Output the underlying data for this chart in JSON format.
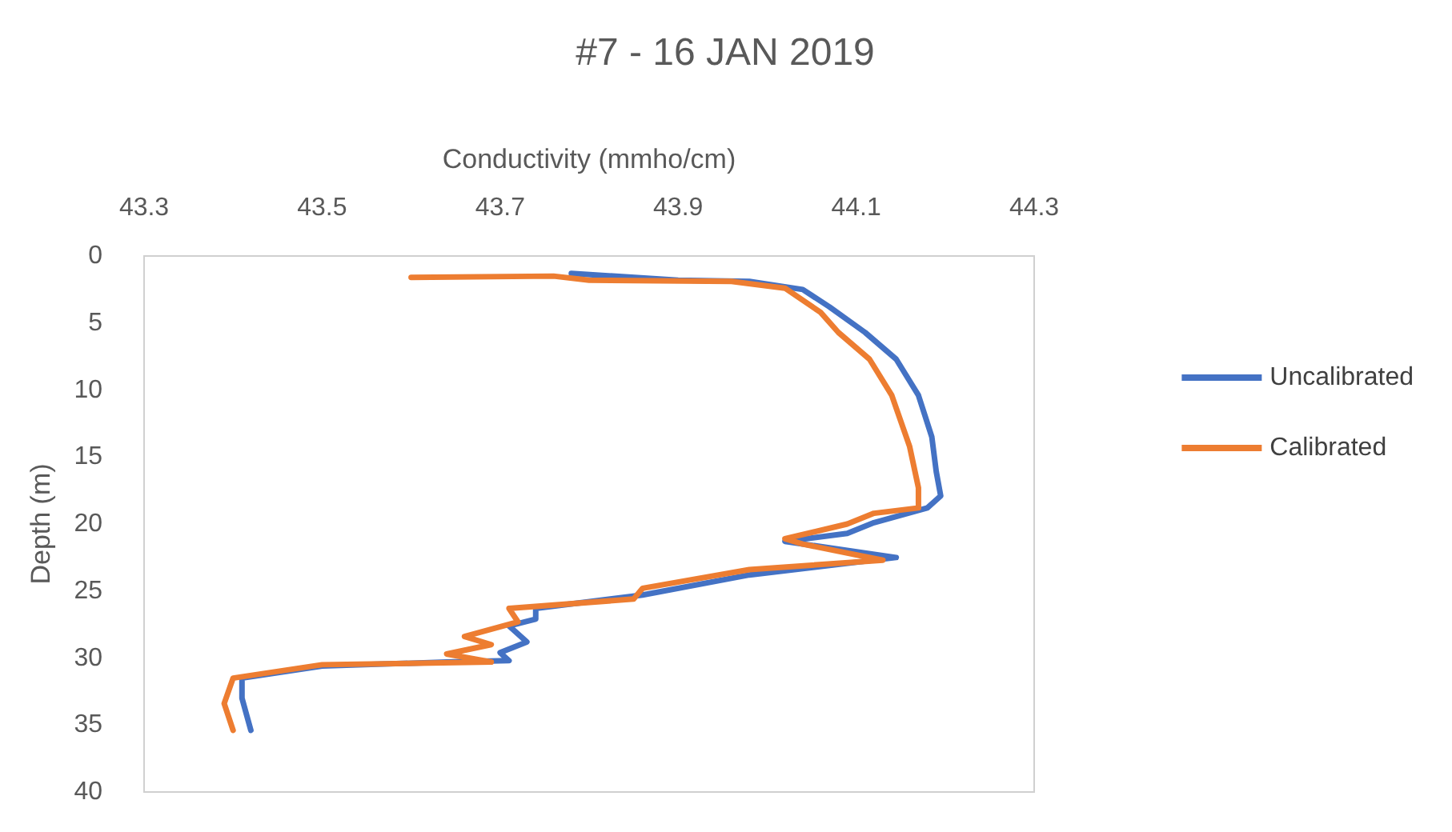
{
  "chart_data": {
    "type": "line",
    "title": "#7 - 16 JAN 2019",
    "xlabel": "Conductivity (mmho/cm)",
    "ylabel": "Depth (m)",
    "xlim": [
      43.3,
      44.3
    ],
    "xticks": [
      43.3,
      43.5,
      43.7,
      43.9,
      44.1,
      44.3
    ],
    "ylim": [
      40,
      0
    ],
    "yticks": [
      0,
      5,
      10,
      15,
      20,
      25,
      30,
      35,
      40
    ],
    "grid": false,
    "legend": "right",
    "marker": "none",
    "line_style": "solid",
    "series": [
      {
        "name": "Uncalibrated",
        "color": "#4472c4",
        "x": [
          43.78,
          43.9,
          43.98,
          44.04,
          44.07,
          44.11,
          44.145,
          44.17,
          44.185,
          44.19,
          44.195,
          44.18,
          44.12,
          44.09,
          44.02,
          44.145,
          43.98,
          43.86,
          43.74,
          43.74,
          43.71,
          43.73,
          43.7,
          43.71,
          43.64,
          43.5,
          43.41,
          43.41,
          43.42
        ],
        "values": [
          1.3,
          1.8,
          1.9,
          2.5,
          3.8,
          5.7,
          7.7,
          10.4,
          13.5,
          16.1,
          17.9,
          18.8,
          19.9,
          20.7,
          21.3,
          22.5,
          23.8,
          25.3,
          26.3,
          27.1,
          27.6,
          28.8,
          29.6,
          30.2,
          30.3,
          30.6,
          31.5,
          33.0,
          35.4
        ]
      },
      {
        "name": "Calibrated",
        "color": "#ed7d31",
        "x": [
          43.6,
          43.76,
          43.8,
          43.96,
          44.02,
          44.06,
          44.08,
          44.115,
          44.14,
          44.16,
          44.17,
          44.17,
          44.12,
          44.09,
          44.02,
          44.04,
          44.13,
          43.98,
          43.86,
          43.85,
          43.71,
          43.72,
          43.66,
          43.69,
          43.64,
          43.69,
          43.5,
          43.4,
          43.39,
          43.4
        ],
        "values": [
          1.6,
          1.5,
          1.8,
          1.9,
          2.4,
          4.2,
          5.7,
          7.7,
          10.4,
          14.2,
          17.3,
          18.8,
          19.2,
          20.0,
          21.1,
          21.5,
          22.7,
          23.4,
          24.8,
          25.6,
          26.3,
          27.3,
          28.4,
          29.0,
          29.7,
          30.3,
          30.5,
          31.5,
          33.4,
          35.4
        ]
      }
    ]
  }
}
